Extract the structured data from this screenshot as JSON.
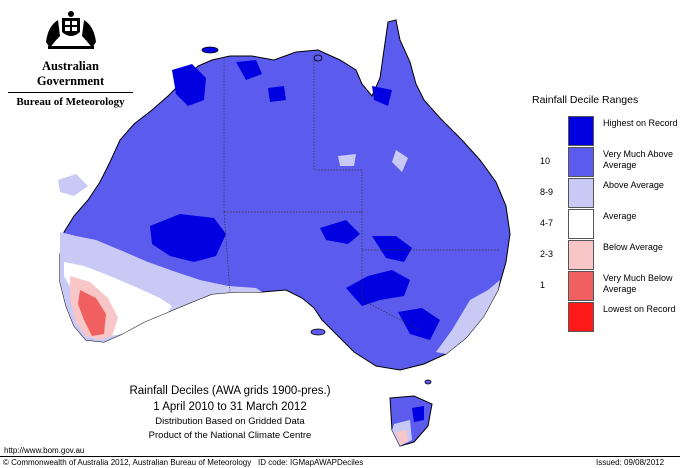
{
  "header": {
    "government": "Australian Government",
    "bureau": "Bureau of Meteorology",
    "crest_icon": "commonwealth-coat-of-arms-icon"
  },
  "legend": {
    "title": "Rainfall Decile Ranges",
    "items": [
      {
        "range": "",
        "label": "Highest on Record",
        "color": "#0000e0"
      },
      {
        "range": "10",
        "label": "Very Much Above Average",
        "color": "#5b5bee"
      },
      {
        "range": "8-9",
        "label": "Above Average",
        "color": "#c9c9f6"
      },
      {
        "range": "4-7",
        "label": "Average",
        "color": "#ffffff"
      },
      {
        "range": "2-3",
        "label": "Below Average",
        "color": "#f8c6c6"
      },
      {
        "range": "1",
        "label": "Very Much Below Average",
        "color": "#f06060"
      },
      {
        "range": "",
        "label": "Lowest on Record",
        "color": "#ff1a1a"
      }
    ]
  },
  "caption": {
    "title": "Rainfall Deciles (AWA grids 1900-pres.)",
    "period": "1 April 2010 to 31 March 2012",
    "note1": "Distribution Based on Gridded Data",
    "note2": "Product of the National Climate Centre"
  },
  "url": "http://www.bom.gov.au",
  "footer": {
    "copyright": "© Commonwealth of Australia 2012, Australian Bureau of Meteorology",
    "id_code": "ID code: IGMapAWAPDeciles",
    "issued": "Issued: 09/08/2012"
  },
  "colors": {
    "highest": "#0000e0",
    "very_much_above": "#5b5bee",
    "above": "#c9c9f6",
    "average": "#ffffff",
    "below": "#f8c6c6",
    "very_much_below": "#f06060",
    "lowest": "#ff1a1a",
    "outline": "#000000"
  }
}
